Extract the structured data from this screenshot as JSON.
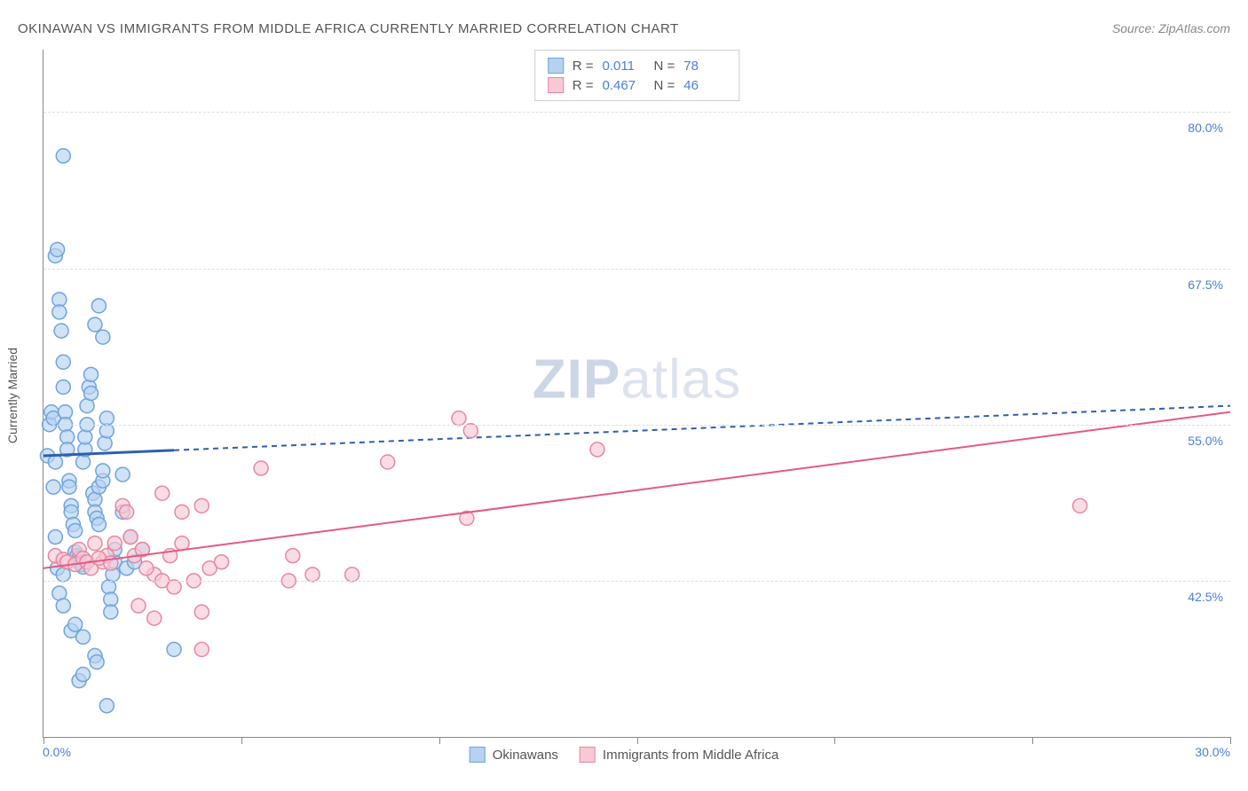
{
  "title": "OKINAWAN VS IMMIGRANTS FROM MIDDLE AFRICA CURRENTLY MARRIED CORRELATION CHART",
  "source": "Source: ZipAtlas.com",
  "y_axis_label": "Currently Married",
  "watermark_bold": "ZIP",
  "watermark_light": "atlas",
  "chart": {
    "type": "scatter",
    "xlim": [
      0.0,
      30.0
    ],
    "ylim": [
      30.0,
      85.0
    ],
    "x_ticks": [
      0.0,
      5.0,
      10.0,
      15.0,
      20.0,
      25.0,
      30.0
    ],
    "x_tick_labels_shown": {
      "left": "0.0%",
      "right": "30.0%"
    },
    "y_gridlines": [
      42.5,
      55.0,
      67.5,
      80.0
    ],
    "y_tick_labels": [
      "42.5%",
      "55.0%",
      "67.5%",
      "80.0%"
    ],
    "background_color": "#ffffff",
    "grid_color": "#dddddd",
    "axis_color": "#888888",
    "tick_label_color": "#4a7fd8"
  },
  "series": [
    {
      "name": "Okinawans",
      "marker_color_fill": "#b7d2f0",
      "marker_color_stroke": "#6fa3df",
      "marker_radius": 8,
      "marker_opacity": 0.65,
      "regression": {
        "start": [
          0.0,
          52.5
        ],
        "end": [
          30.0,
          56.5
        ],
        "solid_until_x": 3.3,
        "color": "#2d5fb0",
        "width": 2,
        "dash": "6,5"
      },
      "stats": {
        "R_label": "R =",
        "R_value": "0.011",
        "N_label": "N =",
        "N_value": "78"
      },
      "points": [
        [
          0.1,
          52.5
        ],
        [
          0.15,
          55.0
        ],
        [
          0.2,
          56.0
        ],
        [
          0.25,
          55.5
        ],
        [
          0.3,
          68.5
        ],
        [
          0.35,
          69.0
        ],
        [
          0.3,
          46.0
        ],
        [
          0.4,
          65.0
        ],
        [
          0.4,
          64.0
        ],
        [
          0.45,
          62.5
        ],
        [
          0.5,
          60.0
        ],
        [
          0.5,
          58.0
        ],
        [
          0.55,
          56.0
        ],
        [
          0.55,
          55.0
        ],
        [
          0.6,
          54.0
        ],
        [
          0.6,
          53.0
        ],
        [
          0.65,
          50.5
        ],
        [
          0.65,
          50.0
        ],
        [
          0.7,
          48.5
        ],
        [
          0.7,
          48.0
        ],
        [
          0.75,
          47.0
        ],
        [
          0.8,
          46.5
        ],
        [
          0.8,
          44.8
        ],
        [
          0.85,
          44.5
        ],
        [
          0.9,
          44.3
        ],
        [
          0.9,
          44.0
        ],
        [
          0.95,
          43.8
        ],
        [
          1.0,
          43.6
        ],
        [
          1.0,
          52.0
        ],
        [
          1.05,
          53.0
        ],
        [
          1.05,
          54.0
        ],
        [
          1.1,
          55.0
        ],
        [
          1.1,
          56.5
        ],
        [
          1.15,
          58.0
        ],
        [
          1.2,
          57.5
        ],
        [
          1.2,
          59.0
        ],
        [
          1.25,
          49.5
        ],
        [
          1.3,
          49.0
        ],
        [
          1.3,
          48.0
        ],
        [
          1.35,
          47.5
        ],
        [
          1.4,
          47.0
        ],
        [
          1.4,
          50.0
        ],
        [
          1.5,
          50.5
        ],
        [
          1.5,
          51.3
        ],
        [
          1.55,
          53.5
        ],
        [
          1.6,
          54.5
        ],
        [
          1.6,
          55.5
        ],
        [
          1.65,
          42.0
        ],
        [
          1.7,
          41.0
        ],
        [
          1.7,
          40.0
        ],
        [
          1.75,
          43.0
        ],
        [
          1.8,
          44.0
        ],
        [
          1.8,
          45.0
        ],
        [
          2.0,
          48.0
        ],
        [
          2.0,
          51.0
        ],
        [
          2.1,
          43.5
        ],
        [
          2.2,
          46.0
        ],
        [
          2.3,
          44.0
        ],
        [
          2.5,
          45.0
        ],
        [
          1.3,
          63.0
        ],
        [
          1.4,
          64.5
        ],
        [
          1.5,
          62.0
        ],
        [
          0.5,
          76.5
        ],
        [
          0.9,
          34.5
        ],
        [
          1.0,
          35.0
        ],
        [
          1.3,
          36.5
        ],
        [
          1.35,
          36.0
        ],
        [
          1.6,
          32.5
        ],
        [
          3.3,
          37.0
        ],
        [
          0.4,
          41.5
        ],
        [
          0.5,
          40.5
        ],
        [
          0.7,
          38.5
        ],
        [
          0.8,
          39.0
        ],
        [
          1.0,
          38.0
        ],
        [
          0.35,
          43.5
        ],
        [
          0.3,
          52.0
        ],
        [
          0.25,
          50.0
        ],
        [
          0.5,
          43.0
        ]
      ]
    },
    {
      "name": "Immigrants from Middle Africa",
      "marker_color_fill": "#f6c9d5",
      "marker_color_stroke": "#e8879f",
      "marker_radius": 8,
      "marker_opacity": 0.65,
      "regression": {
        "start": [
          0.0,
          43.5
        ],
        "end": [
          30.0,
          56.0
        ],
        "solid_until_x": 30.0,
        "color": "#e35a82",
        "width": 2,
        "dash": "none"
      },
      "stats": {
        "R_label": "R =",
        "R_value": "0.467",
        "N_label": "N =",
        "N_value": "46"
      },
      "points": [
        [
          0.3,
          44.5
        ],
        [
          0.5,
          44.2
        ],
        [
          0.6,
          44.0
        ],
        [
          0.8,
          43.8
        ],
        [
          0.9,
          45.0
        ],
        [
          1.0,
          44.3
        ],
        [
          1.1,
          44.0
        ],
        [
          1.2,
          43.5
        ],
        [
          1.3,
          45.5
        ],
        [
          1.5,
          44.0
        ],
        [
          1.6,
          44.5
        ],
        [
          1.8,
          45.5
        ],
        [
          2.0,
          48.5
        ],
        [
          2.1,
          48.0
        ],
        [
          2.2,
          46.0
        ],
        [
          2.3,
          44.5
        ],
        [
          2.4,
          40.5
        ],
        [
          2.5,
          45.0
        ],
        [
          2.8,
          43.0
        ],
        [
          3.0,
          42.5
        ],
        [
          3.0,
          49.5
        ],
        [
          3.2,
          44.5
        ],
        [
          3.3,
          42.0
        ],
        [
          3.5,
          45.5
        ],
        [
          3.5,
          48.0
        ],
        [
          3.8,
          42.5
        ],
        [
          4.0,
          40.0
        ],
        [
          4.0,
          48.5
        ],
        [
          4.2,
          43.5
        ],
        [
          4.5,
          44.0
        ],
        [
          5.5,
          51.5
        ],
        [
          6.2,
          42.5
        ],
        [
          6.3,
          44.5
        ],
        [
          6.8,
          43.0
        ],
        [
          7.8,
          43.0
        ],
        [
          8.7,
          52.0
        ],
        [
          10.5,
          55.5
        ],
        [
          10.7,
          47.5
        ],
        [
          10.8,
          54.5
        ],
        [
          14.0,
          53.0
        ],
        [
          4.0,
          37.0
        ],
        [
          2.8,
          39.5
        ],
        [
          26.2,
          48.5
        ],
        [
          1.4,
          44.3
        ],
        [
          1.7,
          43.9
        ],
        [
          2.6,
          43.5
        ]
      ]
    }
  ],
  "bottom_legend": [
    {
      "label": "Okinawans",
      "fill": "#b7d2f0",
      "stroke": "#6fa3df"
    },
    {
      "label": "Immigrants from Middle Africa",
      "fill": "#f6c9d5",
      "stroke": "#e8879f"
    }
  ]
}
